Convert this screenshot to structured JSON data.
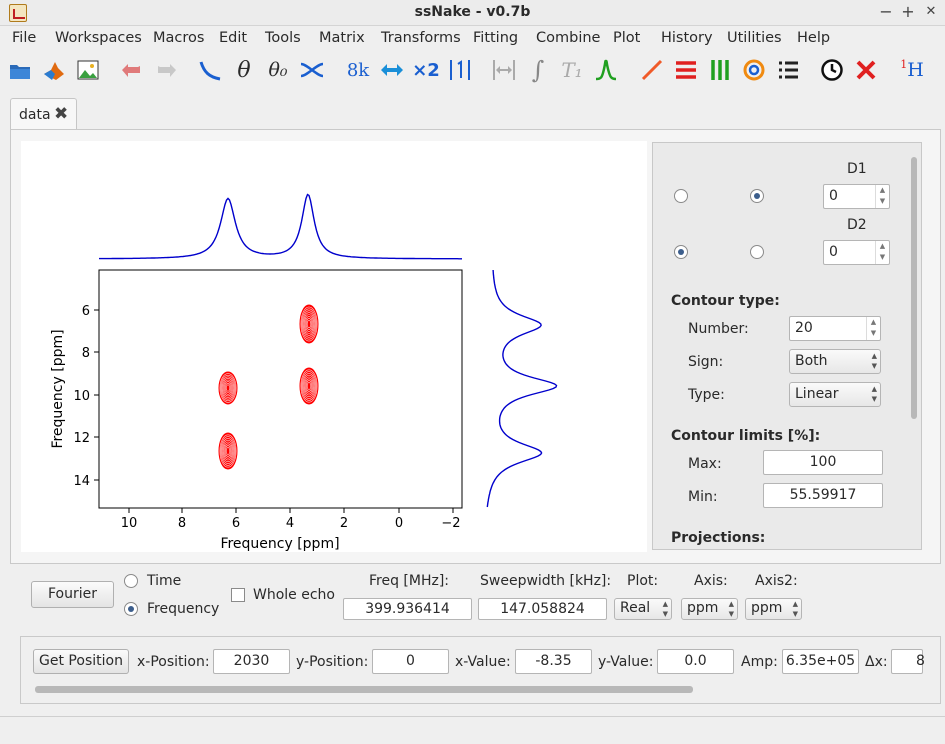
{
  "window": {
    "title": "ssNake - v0.7b",
    "minimize": "−",
    "maximize": "+",
    "close": "✕"
  },
  "menu": [
    "File",
    "Workspaces",
    "Macros",
    "Edit",
    "Tools",
    "Matrix",
    "Transforms",
    "Fitting",
    "Combine",
    "Plot",
    "History",
    "Utilities",
    "Help"
  ],
  "toolbar": {
    "icons": [
      "open-folder-icon",
      "matlab-icon",
      "image-icon",
      "undo-icon",
      "redo-icon",
      "baseline-icon",
      "phase-theta-icon",
      "phase-theta0-icon",
      "apodize-icon",
      "size-icon",
      "swap-icon",
      "multiply-icon",
      "reference-icon",
      "width-icon",
      "integrate-icon",
      "t1-icon",
      "peak-icon",
      "line-plot-icon",
      "stack-plot-icon",
      "array-plot-icon",
      "contour-plot-icon",
      "multi-plot-icon",
      "clock-icon",
      "delete-icon",
      "proton-icon"
    ],
    "glyphs": {
      "theta": "θ",
      "theta0": "θ₀",
      "size": "8k",
      "multiply": "×2",
      "integrate": "∫",
      "t1": "T₁",
      "proton_sup": "1",
      "proton": "H"
    }
  },
  "tabs": [
    {
      "label": "data",
      "close": "✖"
    }
  ],
  "plot": {
    "x_label": "Frequency [ppm]",
    "y_label": "Frequency [ppm]",
    "x_ticks": [
      "10",
      "8",
      "6",
      "4",
      "2",
      "0",
      "−2"
    ],
    "y_ticks": [
      "6",
      "8",
      "10",
      "12",
      "14"
    ],
    "trace_color": "#0000cc",
    "contour_color": "#ff0000"
  },
  "side": {
    "d1_label": "D1",
    "d2_label": "D2",
    "d1_value": "0",
    "d2_value": "0",
    "contour_type_heading": "Contour type:",
    "number_label": "Number:",
    "number_value": "20",
    "sign_label": "Sign:",
    "sign_value": "Both",
    "type_label": "Type:",
    "type_value": "Linear",
    "limits_heading": "Contour limits [%]:",
    "max_label": "Max:",
    "max_value": "100",
    "min_label": "Min:",
    "min_value": "55.59917",
    "projections_heading": "Projections:"
  },
  "controls": {
    "fourier_button": "Fourier",
    "time_label": "Time",
    "frequency_label": "Frequency",
    "whole_echo_label": "Whole echo",
    "freq_header": "Freq [MHz]:",
    "freq_value": "399.936414",
    "sw_header": "Sweepwidth [kHz]:",
    "sw_value": "147.058824",
    "plot_header": "Plot:",
    "plot_value": "Real",
    "axis_header": "Axis:",
    "axis_value": "ppm",
    "axis2_header": "Axis2:",
    "axis2_value": "ppm"
  },
  "position": {
    "get_position_button": "Get Position",
    "x_position_label": "x-Position:",
    "x_position_value": "2030",
    "y_position_label": "y-Position:",
    "y_position_value": "0",
    "x_value_label": "x-Value:",
    "x_value_value": "-8.35",
    "y_value_label": "y-Value:",
    "y_value_value": "0.0",
    "amp_label": "Amp:",
    "amp_value": "6.35e+05",
    "dx_label": "Δx:",
    "dx_value": "8"
  }
}
